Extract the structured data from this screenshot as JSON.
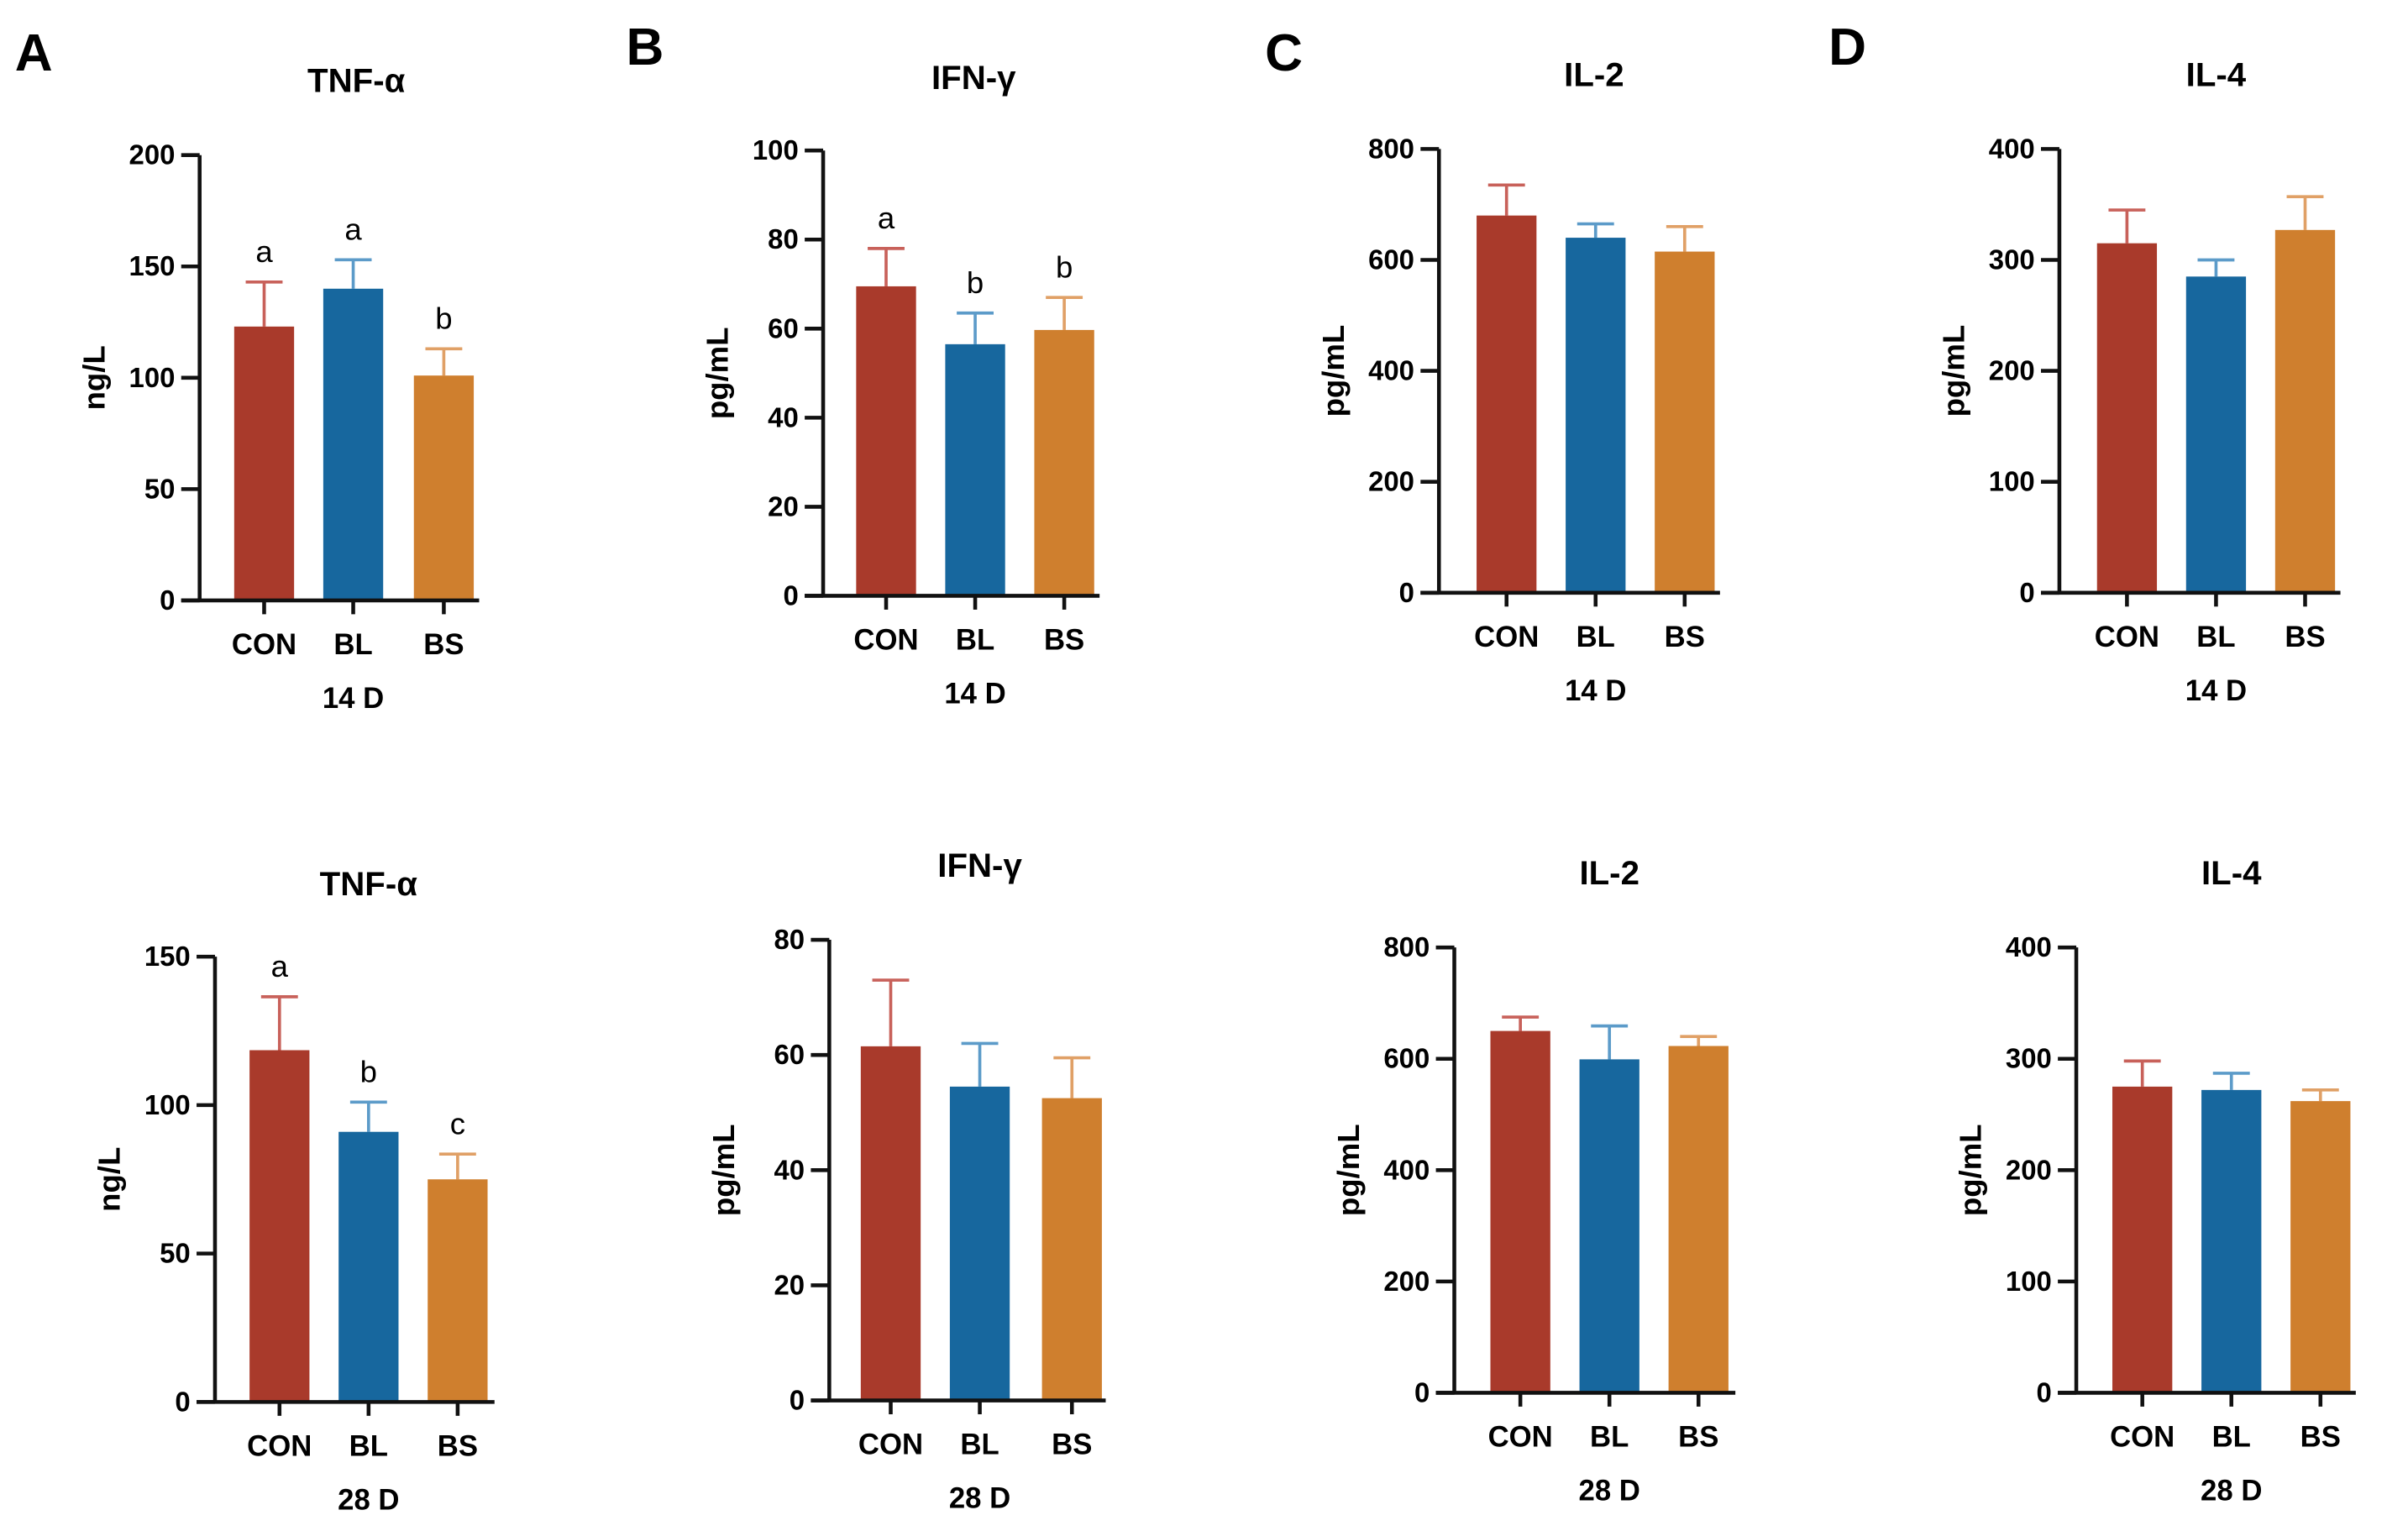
{
  "colors": {
    "CON": "#a93a2b",
    "BL": "#17679e",
    "BS": "#cf7f2e",
    "CON_err": "#c8615a",
    "BL_err": "#5c9bc9",
    "BS_err": "#e0a066"
  },
  "chart_data": [
    {
      "type": "bar",
      "panel": "A",
      "title": "TNF-α",
      "ylabel": "ng/L",
      "xlabel": "14 D",
      "categories": [
        "CON",
        "BL",
        "BS"
      ],
      "values": [
        123,
        140,
        101
      ],
      "errors": [
        20,
        13,
        12
      ],
      "letters": [
        "a",
        "a",
        "b"
      ],
      "ylim": [
        0,
        200
      ],
      "yticks": [
        0,
        50,
        100,
        150,
        200
      ]
    },
    {
      "type": "bar",
      "panel": "B",
      "title": "IFN-γ",
      "ylabel": "pg/mL",
      "xlabel": "14 D",
      "categories": [
        "CON",
        "BL",
        "BS"
      ],
      "values": [
        69.5,
        56.5,
        59.7
      ],
      "errors": [
        8.5,
        7,
        7.3
      ],
      "letters": [
        "a",
        "b",
        "b"
      ],
      "ylim": [
        0,
        100
      ],
      "yticks": [
        0,
        20,
        40,
        60,
        80,
        100
      ]
    },
    {
      "type": "bar",
      "panel": "C",
      "title": "IL-2",
      "ylabel": "pg/mL",
      "xlabel": "14 D",
      "categories": [
        "CON",
        "BL",
        "BS"
      ],
      "values": [
        680,
        640,
        615
      ],
      "errors": [
        55,
        25,
        45
      ],
      "letters": [
        "",
        "",
        ""
      ],
      "ylim": [
        0,
        800
      ],
      "yticks": [
        0,
        200,
        400,
        600,
        800
      ]
    },
    {
      "type": "bar",
      "panel": "D",
      "title": "IL-4",
      "ylabel": "pg/mL",
      "xlabel": "14 D",
      "categories": [
        "CON",
        "BL",
        "BS"
      ],
      "values": [
        315,
        285,
        327
      ],
      "errors": [
        30,
        15,
        30
      ],
      "letters": [
        "",
        "",
        ""
      ],
      "ylim": [
        0,
        400
      ],
      "yticks": [
        0,
        100,
        200,
        300,
        400
      ]
    },
    {
      "type": "bar",
      "panel": "",
      "title": "TNF-α",
      "ylabel": "ng/L",
      "xlabel": "28 D",
      "categories": [
        "CON",
        "BL",
        "BS"
      ],
      "values": [
        118.5,
        91,
        75
      ],
      "errors": [
        18,
        10,
        8.5
      ],
      "letters": [
        "a",
        "b",
        "c"
      ],
      "ylim": [
        0,
        150
      ],
      "yticks": [
        0,
        50,
        100,
        150
      ]
    },
    {
      "type": "bar",
      "panel": "",
      "title": "IFN-γ",
      "ylabel": "pg/mL",
      "xlabel": "28 D",
      "categories": [
        "CON",
        "BL",
        "BS"
      ],
      "values": [
        61.5,
        54.5,
        52.5
      ],
      "errors": [
        11.5,
        7.5,
        7
      ],
      "letters": [
        "",
        "",
        ""
      ],
      "ylim": [
        0,
        80
      ],
      "yticks": [
        0,
        20,
        40,
        60,
        80
      ]
    },
    {
      "type": "bar",
      "panel": "",
      "title": "IL-2",
      "ylabel": "pg/mL",
      "xlabel": "28 D",
      "categories": [
        "CON",
        "BL",
        "BS"
      ],
      "values": [
        650,
        599,
        623
      ],
      "errors": [
        25,
        60,
        17
      ],
      "letters": [
        "",
        "",
        ""
      ],
      "ylim": [
        0,
        800
      ],
      "yticks": [
        0,
        200,
        400,
        600,
        800
      ]
    },
    {
      "type": "bar",
      "panel": "",
      "title": "IL-4",
      "ylabel": "pg/mL",
      "xlabel": "28 D",
      "categories": [
        "CON",
        "BL",
        "BS"
      ],
      "values": [
        275,
        272,
        262
      ],
      "errors": [
        23,
        15,
        10
      ],
      "letters": [
        "",
        "",
        ""
      ],
      "ylim": [
        0,
        400
      ],
      "yticks": [
        0,
        100,
        200,
        300,
        400
      ]
    }
  ]
}
